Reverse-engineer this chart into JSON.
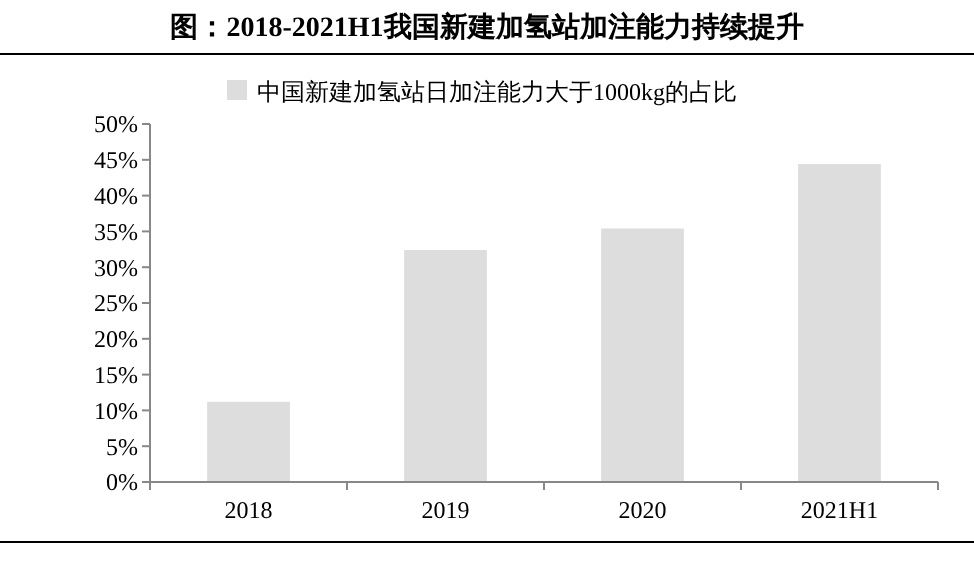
{
  "chart_data": {
    "type": "bar",
    "title": "图：2018-2021H1我国新建加氢站加注能力持续提升",
    "categories": [
      "2018",
      "2019",
      "2020",
      "2021H1"
    ],
    "series": [
      {
        "name": "中国新建加氢站日加注能力大于1000kg的占比",
        "color": "#dddddd",
        "values": [
          11.2,
          32.4,
          35.4,
          44.4
        ]
      }
    ],
    "ylim": [
      0,
      50
    ],
    "yticks": [
      {
        "value": 0,
        "label": "0%"
      },
      {
        "value": 5,
        "label": "5%"
      },
      {
        "value": 10,
        "label": "10%"
      },
      {
        "value": 15,
        "label": "15%"
      },
      {
        "value": 20,
        "label": "20%"
      },
      {
        "value": 25,
        "label": "25%"
      },
      {
        "value": 30,
        "label": "30%"
      },
      {
        "value": 35,
        "label": "35%"
      },
      {
        "value": 40,
        "label": "40%"
      },
      {
        "value": 45,
        "label": "45%"
      },
      {
        "value": 50,
        "label": "50%"
      }
    ],
    "legend": "top",
    "grid": false
  }
}
